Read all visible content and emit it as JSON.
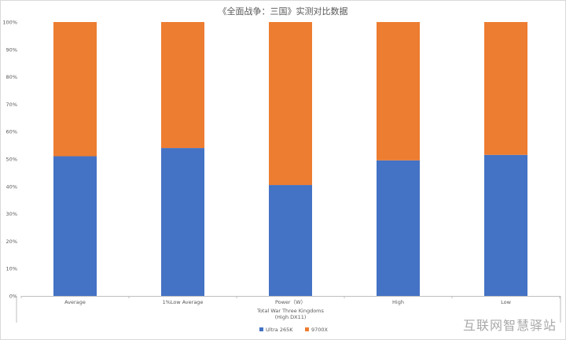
{
  "chart_data": {
    "type": "bar",
    "stacked": "percent",
    "title": "《全面战争：三国》实测对比数据",
    "xlabel_lines": [
      "Total War Three Kingdoms",
      "(High DX11)"
    ],
    "ylabel": "",
    "categories": [
      "Average",
      "1%Low Average",
      "Power（W）",
      "High",
      "Low"
    ],
    "series": [
      {
        "name": "Ultra 265K",
        "color": "#4472C4",
        "values": [
          51,
          54,
          40.5,
          49.5,
          51.5
        ]
      },
      {
        "name": "9700X",
        "color": "#ED7D31",
        "values": [
          49,
          46,
          59.5,
          50.5,
          48.5
        ]
      }
    ],
    "yticks": [
      "0%",
      "10%",
      "20%",
      "30%",
      "40%",
      "50%",
      "60%",
      "70%",
      "80%",
      "90%",
      "100%"
    ],
    "ylim": [
      0,
      100
    ],
    "grid": false,
    "legend_position": "bottom"
  },
  "watermark": "互联网智慧驿站"
}
